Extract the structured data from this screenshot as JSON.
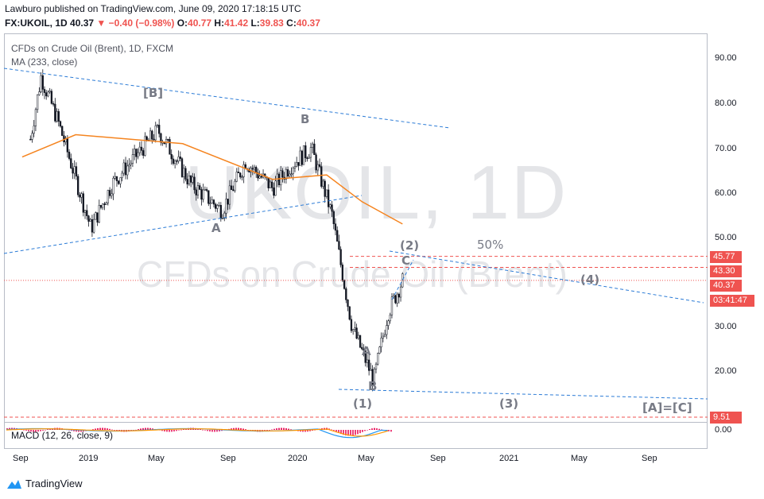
{
  "header": {
    "published_line": "Lawburo published on TradingView.com, June 09, 2020 17:18:15 UTC",
    "symbol": "FX:UKOIL, 1D",
    "price": "40.37",
    "change": "−0.40 (−0.98%)",
    "open_label": "O:",
    "open": "40.77",
    "high_label": "H:",
    "high": "41.42",
    "low_label": "L:",
    "low": "39.83",
    "close_label": "C:",
    "close": "40.37"
  },
  "legend": {
    "series": "CFDs on Crude Oil (Brent), 1D, FXCM",
    "ma": "MA (233, close)",
    "macd": "MACD (12, 26, close, 9)"
  },
  "watermark": {
    "symbol": "UKOIL, 1D",
    "description": "CFDs on Crude Oil (Brent)"
  },
  "price_scale": {
    "ticks": [
      "90.00",
      "80.00",
      "70.00",
      "60.00",
      "50.00",
      "30.00",
      "20.00"
    ],
    "macd_tick": "0.00",
    "badges": [
      {
        "text": "45.77",
        "color": "#ef5350"
      },
      {
        "text": "43.30",
        "color": "#ef5350"
      },
      {
        "text": "40.37",
        "color": "#ef5350"
      },
      {
        "text": "03:41:47",
        "color": "#ef5350"
      },
      {
        "text": "9.51",
        "color": "#ef5350"
      }
    ]
  },
  "time_axis": [
    "Sep",
    "2019",
    "May",
    "Sep",
    "2020",
    "May",
    "Sep",
    "2021",
    "May",
    "Sep"
  ],
  "wave_labels": {
    "big_b": "[B]",
    "b": "B",
    "a": "A",
    "w2": "(2)",
    "c": "C",
    "fifty": "50%",
    "w4": "(4)",
    "a2": "A",
    "b2": "B",
    "w1": "(1)",
    "w3": "(3)",
    "ac": "[A]=[C]"
  },
  "footer": {
    "brand": "TradingView"
  },
  "colors": {
    "ma": "#f5841f",
    "trend": "#2b7bd6",
    "level": "#ef5350",
    "macd_pos": "#e91e63",
    "macd_line": "#2196f3",
    "signal": "#ff9800"
  },
  "chart_data": {
    "type": "candlestick",
    "title": "CFDs on Crude Oil (Brent), 1D, FXCM",
    "ylim": [
      10,
      95
    ],
    "x": [
      "2018-09-15",
      "2018-10-03",
      "2018-11-01",
      "2018-12-27",
      "2019-02-01",
      "2019-04-20",
      "2019-06-15",
      "2019-08-07",
      "2019-09-16",
      "2019-11-01",
      "2019-12-01",
      "2020-01-06",
      "2020-02-10",
      "2020-03-15",
      "2020-04-21",
      "2020-05-15",
      "2020-06-09"
    ],
    "close": [
      72,
      86,
      76,
      52,
      62,
      74,
      62,
      56,
      67,
      61,
      66,
      70,
      55,
      30,
      18,
      33,
      40.37
    ],
    "ma_233": {
      "x": [
        "2018-09-01",
        "2018-12-01",
        "2019-06-01",
        "2019-11-01",
        "2020-02-01",
        "2020-04-01",
        "2020-06-09"
      ],
      "values": [
        68,
        73,
        71,
        63,
        64,
        58,
        53
      ]
    },
    "levels": [
      45.77,
      43.3,
      40.37,
      9.51
    ]
  }
}
